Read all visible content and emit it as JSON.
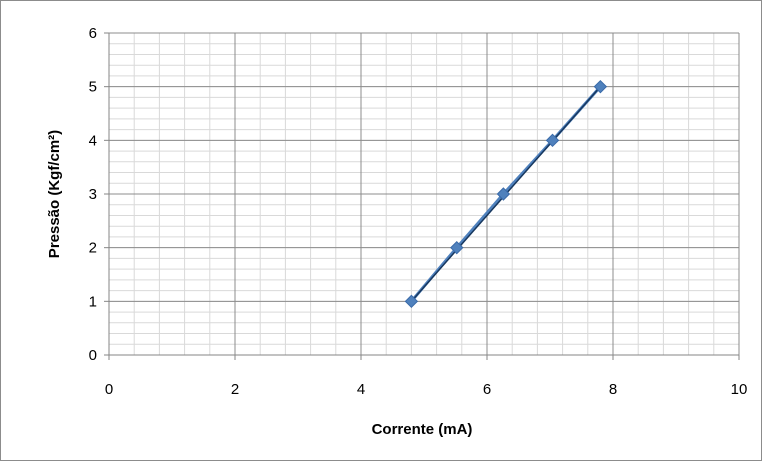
{
  "chart_data": {
    "type": "scatter",
    "title": "",
    "xlabel": "Corrente (mA)",
    "ylabel": "Pressão (Kgf/cm²)",
    "xlim": [
      0,
      10
    ],
    "ylim": [
      0,
      6
    ],
    "x_ticks": [
      0,
      2,
      4,
      6,
      8,
      10
    ],
    "y_ticks": [
      0,
      1,
      2,
      3,
      4,
      5,
      6
    ],
    "x_minor_step": 0.4,
    "y_minor_step": 0.2,
    "grid": true,
    "legend": "none",
    "series": [
      {
        "x": [
          4.8,
          5.52,
          6.26,
          7.04,
          7.8
        ],
        "y": [
          1,
          2,
          3,
          4,
          5
        ],
        "color": "#4f81bd",
        "marker": "diamond",
        "connected": true
      }
    ],
    "trendline": {
      "x": [
        4.8,
        7.8
      ],
      "y": [
        1,
        5
      ],
      "color": "#17375e"
    }
  }
}
